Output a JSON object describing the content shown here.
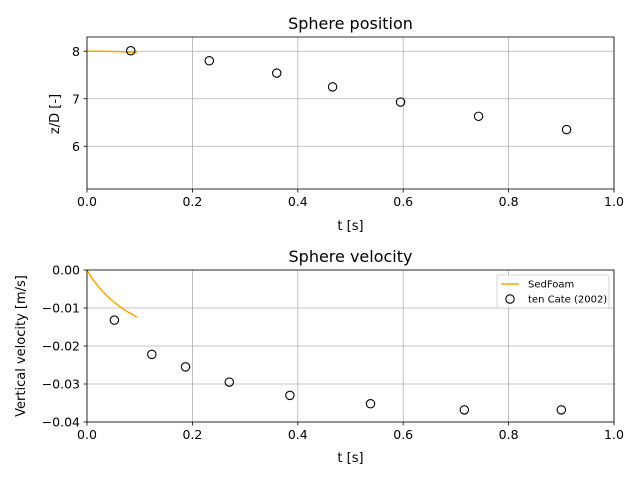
{
  "chart_data": [
    {
      "type": "scatter",
      "title": "Sphere position",
      "xlabel": "t [s]",
      "ylabel": "z/D [-]",
      "xlim": [
        0,
        1.0
      ],
      "ylim": [
        5.1,
        8.3
      ],
      "xticks": [
        0.0,
        0.2,
        0.4,
        0.6,
        0.8,
        1.0
      ],
      "xtick_labels": [
        "0.0",
        "0.2",
        "0.4",
        "0.6",
        "0.8",
        "1.0"
      ],
      "yticks": [
        6,
        7,
        8
      ],
      "ytick_labels": [
        "6",
        "7",
        "8"
      ],
      "grid": true,
      "series": [
        {
          "name": "SedFoam",
          "kind": "line",
          "color": "#ffa500",
          "x": [
            0.0,
            0.01,
            0.02,
            0.03,
            0.04,
            0.05,
            0.06,
            0.07,
            0.08,
            0.09,
            0.095
          ],
          "y": [
            8.0,
            8.0,
            8.0,
            7.999,
            7.997,
            7.995,
            7.991,
            7.987,
            7.982,
            7.976,
            7.973
          ]
        },
        {
          "name": "ten Cate (2002)",
          "kind": "scatter",
          "color": "#000000",
          "x": [
            0.083,
            0.232,
            0.36,
            0.466,
            0.595,
            0.743,
            0.91
          ],
          "y": [
            8.01,
            7.8,
            7.54,
            7.25,
            6.93,
            6.63,
            6.35
          ]
        }
      ]
    },
    {
      "type": "scatter",
      "title": "Sphere velocity",
      "xlabel": "t [s]",
      "ylabel": "Vertical velocity [m/s]",
      "xlim": [
        0,
        1.0
      ],
      "ylim": [
        -0.04,
        0.0
      ],
      "xticks": [
        0.0,
        0.2,
        0.4,
        0.6,
        0.8,
        1.0
      ],
      "xtick_labels": [
        "0.0",
        "0.2",
        "0.4",
        "0.6",
        "0.8",
        "1.0"
      ],
      "yticks": [
        0.0,
        -0.01,
        -0.02,
        -0.03,
        -0.04
      ],
      "ytick_labels": [
        "0.00",
        "−0.01",
        "−0.02",
        "−0.03",
        "−0.04"
      ],
      "grid": true,
      "legend": {
        "position": "top-right",
        "entries": [
          "SedFoam",
          "ten Cate (2002)"
        ]
      },
      "series": [
        {
          "name": "SedFoam",
          "kind": "line",
          "color": "#ffa500",
          "x": [
            0.0,
            0.01,
            0.02,
            0.03,
            0.04,
            0.05,
            0.06,
            0.07,
            0.08,
            0.09,
            0.095
          ],
          "y": [
            0.0,
            -0.0023,
            -0.0041,
            -0.0057,
            -0.0071,
            -0.0083,
            -0.0094,
            -0.0104,
            -0.0112,
            -0.012,
            -0.0125
          ]
        },
        {
          "name": "ten Cate (2002)",
          "kind": "scatter",
          "color": "#000000",
          "x": [
            0.052,
            0.123,
            0.187,
            0.27,
            0.385,
            0.538,
            0.716,
            0.9
          ],
          "y": [
            -0.0132,
            -0.0222,
            -0.0255,
            -0.0295,
            -0.033,
            -0.0352,
            -0.0368,
            -0.0368
          ]
        }
      ]
    }
  ]
}
